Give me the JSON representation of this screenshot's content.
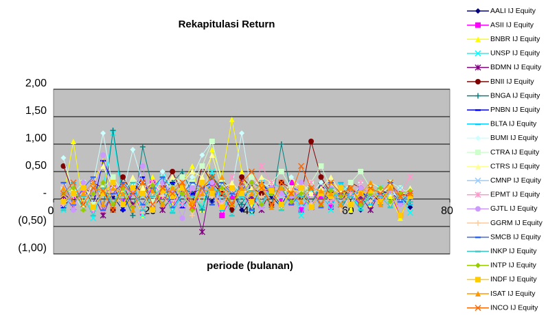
{
  "chart_data": {
    "type": "line",
    "title": "Rekapitulasi Return",
    "x_label": "periode (bulanan)",
    "x": [
      2,
      4,
      6,
      8,
      10,
      12,
      14,
      16,
      18,
      20,
      22,
      24,
      26,
      28,
      30,
      32,
      34,
      36,
      38,
      40,
      42,
      44,
      46,
      48,
      50,
      52,
      54,
      56,
      58,
      60,
      62,
      64,
      66,
      68,
      70,
      72
    ],
    "xlim": [
      0,
      80
    ],
    "xticks": [
      0,
      20,
      40,
      60,
      80
    ],
    "ylim": [
      -1,
      2
    ],
    "yticks": [
      {
        "value": 2,
        "label": "2,00"
      },
      {
        "value": 1.5,
        "label": "1,50"
      },
      {
        "value": 1,
        "label": "1,00"
      },
      {
        "value": 0.5,
        "label": "0,50"
      },
      {
        "value": 0,
        "label": "-"
      },
      {
        "value": -0.5,
        "label": "(0,50)"
      },
      {
        "value": -1,
        "label": "(1,00)"
      }
    ],
    "grid": true,
    "plot_background": "#c0c0c0",
    "legend": "right",
    "series": [
      {
        "name": "AALI IJ Equity",
        "color": "#000080",
        "marker": "diamond",
        "values": [
          0.1,
          -0.05,
          0.2,
          -0.1,
          0.15,
          0.05,
          -0.2,
          0.3,
          0.1,
          -0.15,
          0.05,
          0.25,
          -0.1,
          0.2,
          0.1,
          -0.05,
          0.35,
          0.15,
          -0.2,
          0.1,
          0.3,
          0.05,
          -0.15,
          0.2,
          0.1,
          -0.1,
          0.15,
          -0.05,
          0.2,
          0.05,
          -0.2,
          0.1,
          0.15,
          -0.1,
          0.05,
          -0.15
        ]
      },
      {
        "name": "ASII IJ Equity",
        "color": "#ff00ff",
        "marker": "square",
        "values": [
          -0.1,
          0.05,
          0.15,
          -0.2,
          0.1,
          0.2,
          -0.05,
          0.1,
          -0.25,
          0.3,
          0.05,
          -0.1,
          0.2,
          -0.15,
          0.1,
          0.25,
          -0.3,
          0.05,
          0.15,
          -0.1,
          0.2,
          0.1,
          -0.05,
          0.3,
          -0.2,
          0.1,
          0.05,
          -0.15,
          0.2,
          0.1,
          -0.1,
          0.15,
          -0.05,
          0.1,
          -0.3,
          0.05
        ]
      },
      {
        "name": "BNBR IJ Equity",
        "color": "#ffff00",
        "marker": "triangle",
        "values": [
          0.05,
          1.05,
          -0.1,
          0.3,
          0.7,
          -0.2,
          0.2,
          0.1,
          -0.3,
          0.4,
          0.2,
          -0.1,
          0.3,
          0.6,
          -0.2,
          0.9,
          0.4,
          1.45,
          0.5,
          -0.1,
          0.3,
          0.2,
          -0.15,
          0.4,
          0.1,
          0.2,
          -0.1,
          0.3,
          0.15,
          -0.2,
          0.2,
          -0.1,
          0.1,
          0.05,
          -0.35,
          0.1
        ]
      },
      {
        "name": "UNSP IJ Equity",
        "color": "#00ffff",
        "marker": "x",
        "values": [
          -0.2,
          0.1,
          0.3,
          -0.35,
          0.2,
          1.2,
          -0.1,
          0.25,
          -0.3,
          0.15,
          0.4,
          -0.2,
          0.1,
          0.3,
          -0.15,
          0.5,
          -0.1,
          0.2,
          0.05,
          -0.25,
          0.3,
          0.1,
          -0.1,
          0.2,
          -0.3,
          0.15,
          0.1,
          -0.2,
          0.25,
          0.05,
          -0.15,
          0.1,
          0.2,
          -0.1,
          0.05,
          -0.25
        ]
      },
      {
        "name": "BDMN IJ Equity",
        "color": "#800080",
        "marker": "star",
        "values": [
          0.05,
          -0.15,
          0.2,
          0.1,
          -0.3,
          0.15,
          0.25,
          -0.1,
          0.1,
          0.3,
          -0.2,
          0.05,
          0.2,
          0.1,
          -0.6,
          0.4,
          0.15,
          -0.1,
          0.3,
          0.05,
          -0.2,
          0.2,
          0.1,
          -0.05,
          0.15,
          -0.15,
          0.25,
          0.1,
          -0.1,
          0.2,
          0.05,
          -0.2,
          0.15,
          0.1,
          -0.05,
          0.1
        ]
      },
      {
        "name": "BNII IJ Equity",
        "color": "#800000",
        "marker": "circle",
        "values": [
          0.6,
          0.1,
          -0.1,
          0.3,
          0.2,
          -0.2,
          0.4,
          0.1,
          0.3,
          -0.15,
          0.2,
          0.5,
          0.1,
          -0.1,
          0.6,
          0.3,
          0.1,
          -0.2,
          0.4,
          0.2,
          0.1,
          -0.1,
          0.3,
          0.2,
          0.05,
          1.05,
          0.4,
          0.1,
          -0.1,
          0.3,
          0.2,
          0.1,
          -0.05,
          0.25,
          0.1,
          0.05
        ]
      },
      {
        "name": "BNGA IJ Equity",
        "color": "#008080",
        "marker": "plus",
        "values": [
          0.2,
          -0.1,
          0.1,
          0.3,
          -0.2,
          1.25,
          0.1,
          -0.3,
          0.95,
          0.2,
          -0.1,
          0.3,
          0.5,
          0.1,
          -0.2,
          0.4,
          0.2,
          0.1,
          -0.1,
          0.3,
          0.2,
          -0.15,
          1.0,
          0.1,
          0.2,
          -0.1,
          0.3,
          0.1,
          -0.2,
          0.15,
          0.1,
          0.05,
          -0.1,
          0.2,
          0.1,
          -0.05
        ]
      },
      {
        "name": "PNBN IJ Equity",
        "color": "#0000ff",
        "marker": "dash",
        "values": [
          -0.15,
          0.1,
          0.2,
          -0.1,
          0.7,
          0.3,
          -0.2,
          0.1,
          0.4,
          -0.1,
          0.2,
          0.3,
          -0.15,
          0.1,
          0.2,
          0.3,
          -0.1,
          0.2,
          0.1,
          -0.2,
          0.3,
          0.1,
          -0.1,
          0.2,
          0.15,
          -0.15,
          0.1,
          0.2,
          -0.1,
          0.05,
          0.2,
          -0.1,
          0.1,
          0.15,
          -0.05,
          0.1
        ]
      },
      {
        "name": "BLTA IJ Equity",
        "color": "#00ccff",
        "marker": "dash",
        "values": [
          0.1,
          0.3,
          -0.2,
          0.2,
          0.1,
          -0.1,
          0.3,
          0.2,
          -0.15,
          0.1,
          0.4,
          0.2,
          -0.1,
          0.3,
          0.1,
          0.2,
          -0.2,
          0.1,
          0.25,
          0.1,
          -0.1,
          0.3,
          0.2,
          0.05,
          -0.1,
          0.2,
          0.1,
          -0.05,
          0.3,
          0.1,
          0.15,
          -0.1,
          0.2,
          0.1,
          0.05,
          -0.1
        ]
      },
      {
        "name": "BUMI IJ Equity",
        "color": "#ccffff",
        "marker": "diamond",
        "values": [
          0.75,
          0.1,
          -0.2,
          0.3,
          1.2,
          0.2,
          0.1,
          0.9,
          0.3,
          -0.1,
          0.5,
          0.2,
          0.1,
          0.4,
          0.8,
          1.05,
          0.3,
          0.2,
          1.2,
          0.1,
          0.3,
          0.2,
          -0.1,
          0.4,
          0.2,
          0.1,
          0.3,
          0.05,
          0.2,
          -0.1,
          0.3,
          0.1,
          0.15,
          0.2,
          -0.05,
          0.1
        ]
      },
      {
        "name": "CTRA IJ Equity",
        "color": "#ccffcc",
        "marker": "square",
        "values": [
          0.2,
          0.1,
          0.3,
          -0.1,
          0.2,
          0.4,
          0.1,
          0.3,
          0.2,
          -0.05,
          0.3,
          0.2,
          0.4,
          0.3,
          0.6,
          1.05,
          0.3,
          0.2,
          0.1,
          0.4,
          0.2,
          0.3,
          0.5,
          0.2,
          0.1,
          0.3,
          0.6,
          0.2,
          0.1,
          0.3,
          0.5,
          0.2,
          0.1,
          0.3,
          0.2,
          0.1
        ]
      },
      {
        "name": "CTRS IJ Equity",
        "color": "#ffff99",
        "marker": "triangle",
        "values": [
          0.1,
          0.2,
          -0.1,
          0.3,
          0.6,
          0.2,
          0.1,
          0.4,
          0.2,
          0.3,
          0.1,
          0.4,
          0.3,
          0.5,
          0.4,
          0.8,
          0.2,
          0.3,
          0.1,
          0.2,
          0.4,
          0.3,
          0.1,
          0.2,
          0.3,
          0.1,
          0.2,
          0.4,
          0.1,
          0.2,
          0.1,
          0.3,
          0.2,
          0.1,
          0.05,
          0.2
        ]
      },
      {
        "name": "CMNP IJ Equity",
        "color": "#99ccff",
        "marker": "x",
        "values": [
          -0.1,
          0.1,
          0.2,
          -0.2,
          0.1,
          0.15,
          -0.1,
          0.2,
          0.05,
          -0.15,
          0.1,
          0.2,
          0.05,
          -0.1,
          0.15,
          0.2,
          -0.05,
          0.1,
          0.2,
          0.1,
          -0.1,
          0.15,
          0.05,
          0.1,
          -0.1,
          0.2,
          0.1,
          0.05,
          -0.05,
          0.1,
          0.15,
          0.05,
          -0.1,
          0.1,
          0.2,
          0.05
        ]
      },
      {
        "name": "EPMT IJ Equity",
        "color": "#ff99cc",
        "marker": "star",
        "values": [
          0.2,
          -0.1,
          0.1,
          0.3,
          -0.2,
          0.1,
          0.2,
          0.1,
          -0.15,
          0.3,
          0.2,
          0.1,
          -0.1,
          0.2,
          0.3,
          0.1,
          -0.1,
          0.4,
          0.2,
          0.1,
          0.6,
          0.3,
          0.1,
          -0.1,
          0.2,
          0.3,
          0.1,
          -0.05,
          0.2,
          0.1,
          0.3,
          0.1,
          -0.1,
          0.2,
          0.1,
          0.4
        ]
      },
      {
        "name": "GJTL IJ Equity",
        "color": "#cc99ff",
        "marker": "circle",
        "values": [
          0.1,
          -0.2,
          0.3,
          0.1,
          0.8,
          -0.1,
          0.2,
          0.1,
          0.6,
          -0.2,
          0.3,
          0.1,
          -0.35,
          0.2,
          0.1,
          0.3,
          -0.1,
          0.2,
          0.1,
          0.3,
          -0.15,
          0.2,
          0.1,
          0.05,
          0.3,
          -0.1,
          0.1,
          0.2,
          0.05,
          -0.1,
          0.2,
          0.1,
          0.05,
          0.15,
          -0.1,
          0.1
        ]
      },
      {
        "name": "GGRM IJ Equity",
        "color": "#ffcc99",
        "marker": "plus",
        "values": [
          -0.1,
          0.05,
          0.1,
          -0.2,
          0.15,
          0.1,
          -0.1,
          0.2,
          -0.25,
          0.1,
          0.05,
          -0.15,
          0.2,
          -0.3,
          0.1,
          0.05,
          -0.1,
          0.15,
          0.1,
          -0.2,
          0.05,
          0.1,
          -0.15,
          0.2,
          0.05,
          -0.1,
          0.15,
          0.1,
          -0.2,
          0.05,
          0.1,
          -0.05,
          0.15,
          -0.1,
          0.05,
          0.1
        ]
      },
      {
        "name": "SMCB IJ Equity",
        "color": "#3366ff",
        "marker": "dash",
        "values": [
          0.3,
          -0.1,
          0.2,
          0.4,
          -0.2,
          0.1,
          0.3,
          0.1,
          -0.1,
          0.2,
          0.4,
          -0.15,
          0.1,
          0.3,
          0.2,
          -0.1,
          0.3,
          0.1,
          0.2,
          -0.2,
          0.3,
          0.1,
          0.2,
          -0.1,
          0.1,
          0.2,
          -0.15,
          0.3,
          0.1,
          0.05,
          -0.1,
          0.2,
          0.1,
          0.3,
          -0.05,
          0.1
        ]
      },
      {
        "name": "INKP IJ Equity",
        "color": "#33cccc",
        "marker": "dash",
        "values": [
          -0.2,
          0.1,
          0.05,
          -0.3,
          0.2,
          -0.1,
          0.1,
          0.3,
          -0.2,
          0.05,
          0.2,
          -0.25,
          0.1,
          0.05,
          -0.15,
          0.2,
          0.1,
          -0.3,
          0.05,
          0.15,
          -0.1,
          0.2,
          -0.2,
          0.1,
          0.05,
          -0.15,
          0.1,
          0.2,
          -0.1,
          0.05,
          -0.2,
          0.1,
          0.05,
          -0.15,
          0.1,
          -0.05
        ]
      },
      {
        "name": "INTP IJ Equity",
        "color": "#99cc00",
        "marker": "diamond",
        "values": [
          0.1,
          0.2,
          -0.2,
          0.1,
          0.3,
          -0.1,
          0.2,
          -0.15,
          0.1,
          0.25,
          -0.1,
          0.2,
          0.1,
          -0.2,
          0.3,
          0.1,
          0.2,
          -0.1,
          0.15,
          0.3,
          -0.1,
          0.1,
          0.2,
          -0.05,
          0.1,
          0.2,
          -0.1,
          0.15,
          0.05,
          0.2,
          -0.1,
          0.1,
          0.2,
          -0.05,
          0.1,
          0.15
        ]
      },
      {
        "name": "INDF IJ Equity",
        "color": "#ffcc00",
        "marker": "square",
        "values": [
          -0.05,
          0.1,
          0.2,
          -0.15,
          0.1,
          0.3,
          -0.1,
          0.2,
          0.1,
          -0.2,
          0.15,
          0.05,
          0.2,
          -0.1,
          0.3,
          0.1,
          -0.15,
          0.2,
          0.1,
          -0.05,
          0.2,
          0.15,
          -0.1,
          0.1,
          0.2,
          -0.15,
          0.1,
          0.05,
          0.2,
          -0.1,
          0.1,
          0.15,
          -0.05,
          0.2,
          -0.3,
          0.05
        ]
      },
      {
        "name": "ISAT IJ Equity",
        "color": "#ff9900",
        "marker": "triangle",
        "values": [
          0.2,
          -0.05,
          0.1,
          0.3,
          -0.1,
          0.2,
          0.1,
          -0.2,
          0.3,
          0.15,
          -0.1,
          0.2,
          0.3,
          -0.05,
          0.1,
          0.2,
          0.4,
          -0.1,
          0.2,
          0.1,
          0.3,
          -0.15,
          0.2,
          0.1,
          -0.05,
          0.2,
          0.15,
          0.1,
          -0.1,
          0.2,
          0.1,
          0.3,
          -0.1,
          0.2,
          0.05,
          0.1
        ]
      },
      {
        "name": "INCO IJ Equity",
        "color": "#ff6600",
        "marker": "x",
        "values": [
          0.1,
          0.3,
          -0.1,
          0.2,
          0.15,
          -0.2,
          0.25,
          0.1,
          0.3,
          -0.1,
          0.2,
          0.1,
          0.3,
          -0.15,
          0.2,
          0.4,
          0.1,
          -0.1,
          0.3,
          0.5,
          0.2,
          -0.1,
          0.3,
          0.1,
          0.6,
          0.2,
          -0.1,
          0.3,
          0.1,
          0.2,
          -0.05,
          0.2,
          0.1,
          0.3,
          0.05,
          0.1
        ]
      }
    ]
  }
}
